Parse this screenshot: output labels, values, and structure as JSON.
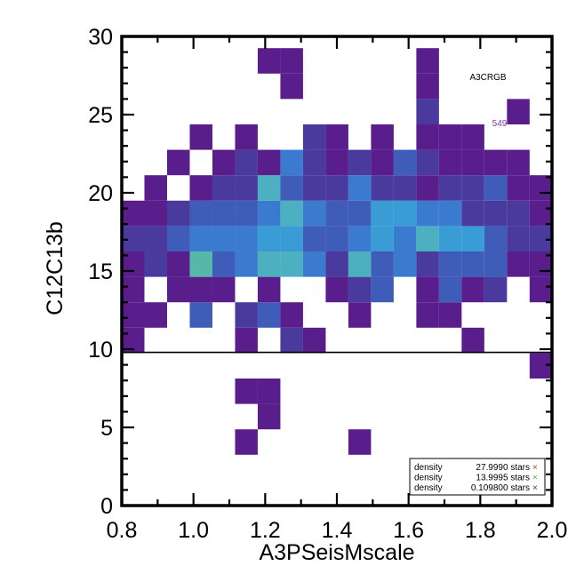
{
  "chart_data": {
    "type": "heatmap",
    "xlabel": "A3PSeisMscale",
    "ylabel": "C12C13b",
    "xlim": [
      0.8,
      2.0
    ],
    "ylim": [
      0,
      30
    ],
    "x_ticks": [
      "0.8",
      "1.0",
      "1.2",
      "1.4",
      "1.6",
      "1.8",
      "2.0"
    ],
    "y_ticks": [
      "0",
      "5",
      "10",
      "15",
      "20",
      "25",
      "30"
    ],
    "x_bin_width": 0.0632,
    "y_bin_width": 1.625,
    "colors": {
      "1": "#5a1e8c",
      "2": "#4a3a9e",
      "3": "#3f5cb8",
      "4": "#3a7bd0",
      "5": "#3a9cd4",
      "6": "#4cb0c0",
      "7": "#56b8a8"
    },
    "annotation": "A3CRGB",
    "count_label": "549",
    "hline_y": 9.8,
    "legend": [
      {
        "label": "density",
        "value": "27.9990 stars",
        "marker": "×",
        "color": "#d03030"
      },
      {
        "label": "density",
        "value": "13.9995 stars",
        "marker": "×",
        "color": "#50b050"
      },
      {
        "label": "density",
        "value": "0.109800 stars",
        "marker": "×",
        "color": "#303080"
      }
    ],
    "cells": [
      [
        0,
        6,
        1
      ],
      [
        0,
        7,
        1
      ],
      [
        0,
        8,
        1
      ],
      [
        0,
        9,
        1
      ],
      [
        0,
        10,
        2
      ],
      [
        0,
        11,
        1
      ],
      [
        1,
        7,
        1
      ],
      [
        1,
        9,
        2
      ],
      [
        1,
        10,
        2
      ],
      [
        1,
        11,
        1
      ],
      [
        1,
        12,
        1
      ],
      [
        2,
        8,
        1
      ],
      [
        2,
        9,
        1
      ],
      [
        2,
        10,
        3
      ],
      [
        2,
        11,
        2
      ],
      [
        2,
        13,
        1
      ],
      [
        3,
        7,
        3
      ],
      [
        3,
        8,
        1
      ],
      [
        3,
        9,
        7
      ],
      [
        3,
        10,
        4
      ],
      [
        3,
        11,
        3
      ],
      [
        3,
        12,
        1
      ],
      [
        3,
        14,
        1
      ],
      [
        4,
        8,
        1
      ],
      [
        4,
        9,
        3
      ],
      [
        4,
        10,
        4
      ],
      [
        4,
        11,
        3
      ],
      [
        4,
        12,
        2
      ],
      [
        4,
        13,
        1
      ],
      [
        5,
        2,
        1
      ],
      [
        5,
        4,
        1
      ],
      [
        5,
        6,
        1
      ],
      [
        5,
        7,
        2
      ],
      [
        5,
        9,
        4
      ],
      [
        5,
        10,
        4
      ],
      [
        5,
        11,
        3
      ],
      [
        5,
        12,
        2
      ],
      [
        5,
        13,
        2
      ],
      [
        5,
        14,
        1
      ],
      [
        6,
        3,
        1
      ],
      [
        6,
        4,
        1
      ],
      [
        6,
        7,
        3
      ],
      [
        6,
        8,
        1
      ],
      [
        6,
        9,
        6
      ],
      [
        6,
        10,
        5
      ],
      [
        6,
        11,
        4
      ],
      [
        6,
        12,
        6
      ],
      [
        6,
        13,
        1
      ],
      [
        6,
        17,
        1
      ],
      [
        7,
        6,
        2
      ],
      [
        7,
        7,
        1
      ],
      [
        7,
        9,
        6
      ],
      [
        7,
        10,
        5
      ],
      [
        7,
        11,
        6
      ],
      [
        7,
        12,
        3
      ],
      [
        7,
        13,
        4
      ],
      [
        7,
        16,
        1
      ],
      [
        7,
        17,
        1
      ],
      [
        8,
        6,
        1
      ],
      [
        8,
        9,
        4
      ],
      [
        8,
        10,
        3
      ],
      [
        8,
        11,
        4
      ],
      [
        8,
        12,
        2
      ],
      [
        8,
        13,
        2
      ],
      [
        8,
        14,
        2
      ],
      [
        9,
        8,
        1
      ],
      [
        9,
        9,
        2
      ],
      [
        9,
        10,
        3
      ],
      [
        9,
        11,
        3
      ],
      [
        9,
        12,
        2
      ],
      [
        9,
        13,
        1
      ],
      [
        9,
        14,
        1
      ],
      [
        10,
        2,
        1
      ],
      [
        10,
        7,
        1
      ],
      [
        10,
        8,
        2
      ],
      [
        10,
        9,
        6
      ],
      [
        10,
        10,
        4
      ],
      [
        10,
        11,
        3
      ],
      [
        10,
        12,
        4
      ],
      [
        10,
        13,
        2
      ],
      [
        11,
        8,
        3
      ],
      [
        11,
        9,
        3
      ],
      [
        11,
        10,
        5
      ],
      [
        11,
        11,
        5
      ],
      [
        11,
        12,
        2
      ],
      [
        11,
        13,
        1
      ],
      [
        11,
        14,
        1
      ],
      [
        12,
        9,
        4
      ],
      [
        12,
        10,
        4
      ],
      [
        12,
        11,
        5
      ],
      [
        12,
        12,
        2
      ],
      [
        12,
        13,
        3
      ],
      [
        13,
        7,
        1
      ],
      [
        13,
        8,
        1
      ],
      [
        13,
        9,
        2
      ],
      [
        13,
        10,
        6
      ],
      [
        13,
        11,
        4
      ],
      [
        13,
        12,
        1
      ],
      [
        13,
        13,
        2
      ],
      [
        13,
        14,
        1
      ],
      [
        13,
        15,
        2
      ],
      [
        13,
        16,
        1
      ],
      [
        13,
        17,
        1
      ],
      [
        14,
        7,
        1
      ],
      [
        14,
        8,
        3
      ],
      [
        14,
        9,
        3
      ],
      [
        14,
        10,
        5
      ],
      [
        14,
        11,
        4
      ],
      [
        14,
        12,
        2
      ],
      [
        14,
        13,
        1
      ],
      [
        14,
        14,
        1
      ],
      [
        15,
        6,
        1
      ],
      [
        15,
        8,
        1
      ],
      [
        15,
        9,
        3
      ],
      [
        15,
        10,
        5
      ],
      [
        15,
        11,
        2
      ],
      [
        15,
        12,
        2
      ],
      [
        15,
        13,
        1
      ],
      [
        15,
        14,
        1
      ],
      [
        16,
        8,
        2
      ],
      [
        16,
        9,
        3
      ],
      [
        16,
        10,
        3
      ],
      [
        16,
        11,
        2
      ],
      [
        16,
        12,
        3
      ],
      [
        16,
        13,
        1
      ],
      [
        17,
        9,
        1
      ],
      [
        17,
        10,
        2
      ],
      [
        17,
        11,
        2
      ],
      [
        17,
        12,
        1
      ],
      [
        17,
        13,
        1
      ],
      [
        17,
        15,
        1
      ],
      [
        18,
        5,
        1
      ],
      [
        18,
        8,
        1
      ],
      [
        18,
        9,
        1
      ],
      [
        18,
        10,
        2
      ],
      [
        18,
        11,
        1
      ],
      [
        18,
        12,
        1
      ],
      [
        19,
        6,
        1
      ],
      [
        19,
        8,
        1
      ],
      [
        19,
        9,
        1
      ],
      [
        19,
        10,
        1
      ],
      [
        19,
        11,
        2
      ],
      [
        19,
        12,
        1
      ],
      [
        19,
        13,
        1
      ],
      [
        20,
        9,
        1
      ],
      [
        20,
        10,
        1
      ],
      [
        20,
        11,
        2
      ],
      [
        20,
        12,
        3
      ],
      [
        20,
        13,
        1
      ],
      [
        20,
        15,
        1
      ],
      [
        21,
        5,
        1
      ],
      [
        21,
        7,
        1
      ],
      [
        21,
        9,
        1
      ],
      [
        21,
        10,
        2
      ],
      [
        21,
        11,
        1
      ],
      [
        21,
        12,
        1
      ],
      [
        21,
        13,
        2
      ],
      [
        21,
        14,
        3
      ],
      [
        22,
        9,
        1
      ],
      [
        22,
        10,
        2
      ],
      [
        22,
        11,
        1
      ],
      [
        22,
        12,
        1
      ],
      [
        23,
        8,
        1
      ],
      [
        23,
        9,
        2
      ],
      [
        23,
        10,
        2
      ],
      [
        23,
        11,
        1
      ],
      [
        23,
        12,
        1
      ],
      [
        23,
        13,
        1
      ],
      [
        23,
        15,
        1
      ],
      [
        23,
        16,
        1
      ],
      [
        23,
        17,
        1
      ],
      [
        23,
        18,
        1
      ]
    ]
  }
}
